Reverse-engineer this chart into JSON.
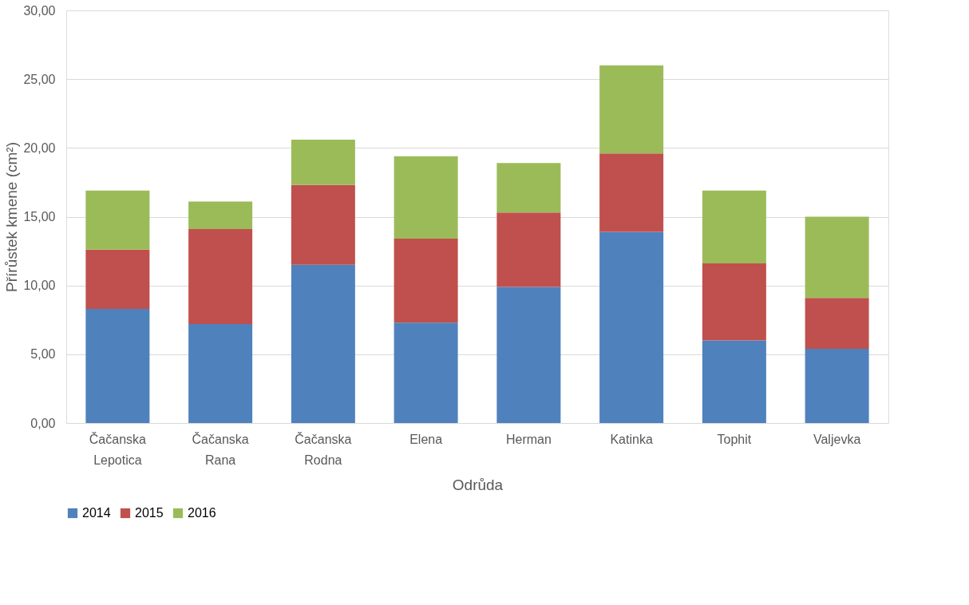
{
  "chart_data": {
    "type": "bar",
    "stacked": true,
    "xlabel": "Odrůda",
    "ylabel": "Přírůstek kmene (cm²)",
    "categories": [
      "Čačanska Lepotica",
      "Čačanska Rana",
      "Čačanska Rodna",
      "Elena",
      "Herman",
      "Katinka",
      "Tophit",
      "Valjevka"
    ],
    "series": [
      {
        "name": "2014",
        "color": "#4f81bd",
        "values": [
          8.3,
          7.2,
          11.5,
          7.3,
          9.9,
          13.9,
          6.0,
          5.4
        ]
      },
      {
        "name": "2015",
        "color": "#c0504d",
        "values": [
          4.3,
          6.9,
          5.8,
          6.1,
          5.4,
          5.7,
          5.6,
          3.7
        ]
      },
      {
        "name": "2016",
        "color": "#9bbb59",
        "values": [
          4.3,
          2.0,
          3.3,
          6.0,
          3.6,
          6.4,
          5.3,
          5.9
        ]
      }
    ],
    "ylim": [
      0,
      30
    ],
    "yticks": [
      {
        "value": 0,
        "label": "0,00"
      },
      {
        "value": 5,
        "label": "5,00"
      },
      {
        "value": 10,
        "label": "10,00"
      },
      {
        "value": 15,
        "label": "15,00"
      },
      {
        "value": 20,
        "label": "20,00"
      },
      {
        "value": 25,
        "label": "25,00"
      },
      {
        "value": 30,
        "label": "30,00"
      }
    ],
    "grid": "y",
    "legend": "bottom"
  }
}
